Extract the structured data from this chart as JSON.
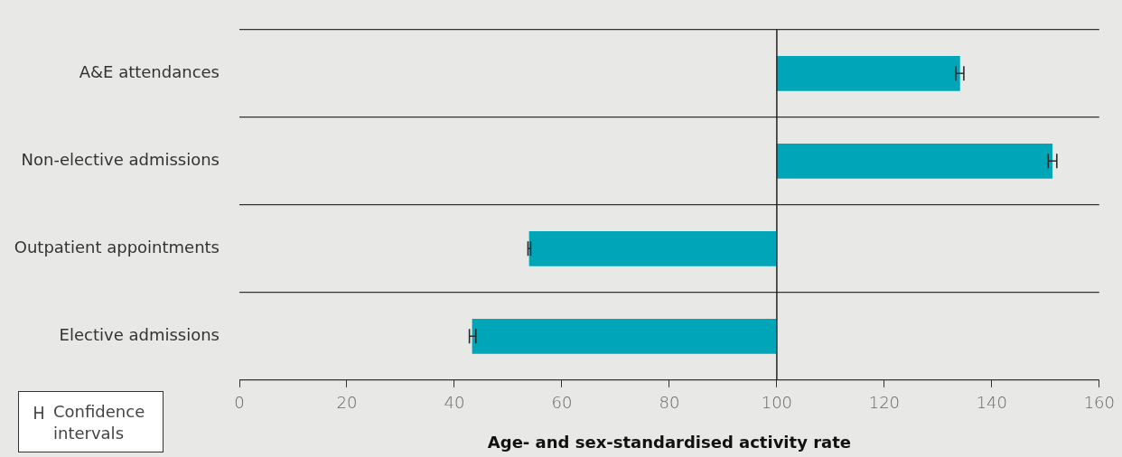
{
  "chart_data": {
    "type": "bar",
    "orientation": "horizontal",
    "xlabel": "Age- and sex-standardised activity rate",
    "categories": [
      "A&E attendances",
      "Non-elective admissions",
      "Outpatient appointments",
      "Elective admissions"
    ],
    "base": [
      100,
      100,
      100,
      100
    ],
    "values": [
      34.1,
      51.3,
      -46.1,
      -56.7
    ],
    "errors": [
      [
        133.3,
        134.8
      ],
      [
        150.5,
        152.1
      ],
      [
        53.7,
        54.2
      ],
      [
        42.8,
        44.0
      ]
    ],
    "color": "#00a6b8",
    "xlim": [
      0,
      160
    ],
    "xticks": [
      0,
      20,
      40,
      60,
      80,
      100,
      120,
      140,
      160
    ],
    "grid": "y",
    "ref_lines": [
      {
        "axis": "x",
        "value": 100,
        "color": "#222222"
      }
    ],
    "annotations": [
      "Confidence intervals"
    ]
  }
}
